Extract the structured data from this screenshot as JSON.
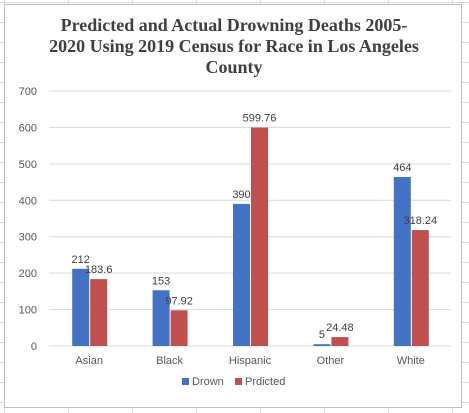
{
  "chart_data": {
    "type": "bar",
    "title": "Predicted and Actual Drowning Deaths 2005-\n2020 Using 2019 Census for Race in Los Angeles\nCounty",
    "categories": [
      "Asian",
      "Black",
      "Hispanic",
      "Other",
      "White"
    ],
    "series": [
      {
        "name": "Drown",
        "values": [
          212,
          153,
          390,
          5,
          464
        ],
        "labels": [
          "212",
          "153",
          "390",
          "5",
          "464"
        ],
        "color": "#4472c4"
      },
      {
        "name": "Prdicted",
        "values": [
          183.6,
          97.92,
          599.76,
          24.48,
          318.24
        ],
        "labels": [
          "183.6",
          "97.92",
          "599.76",
          "24.48",
          "318.24"
        ],
        "color": "#c0504d"
      }
    ],
    "ylim": [
      0,
      700
    ],
    "yticks": [
      "0",
      "100",
      "200",
      "300",
      "400",
      "500",
      "600",
      "700"
    ],
    "grid": true,
    "legend": "bottom",
    "gridline_color": "#d9d9d9",
    "text_color": "#595959"
  }
}
